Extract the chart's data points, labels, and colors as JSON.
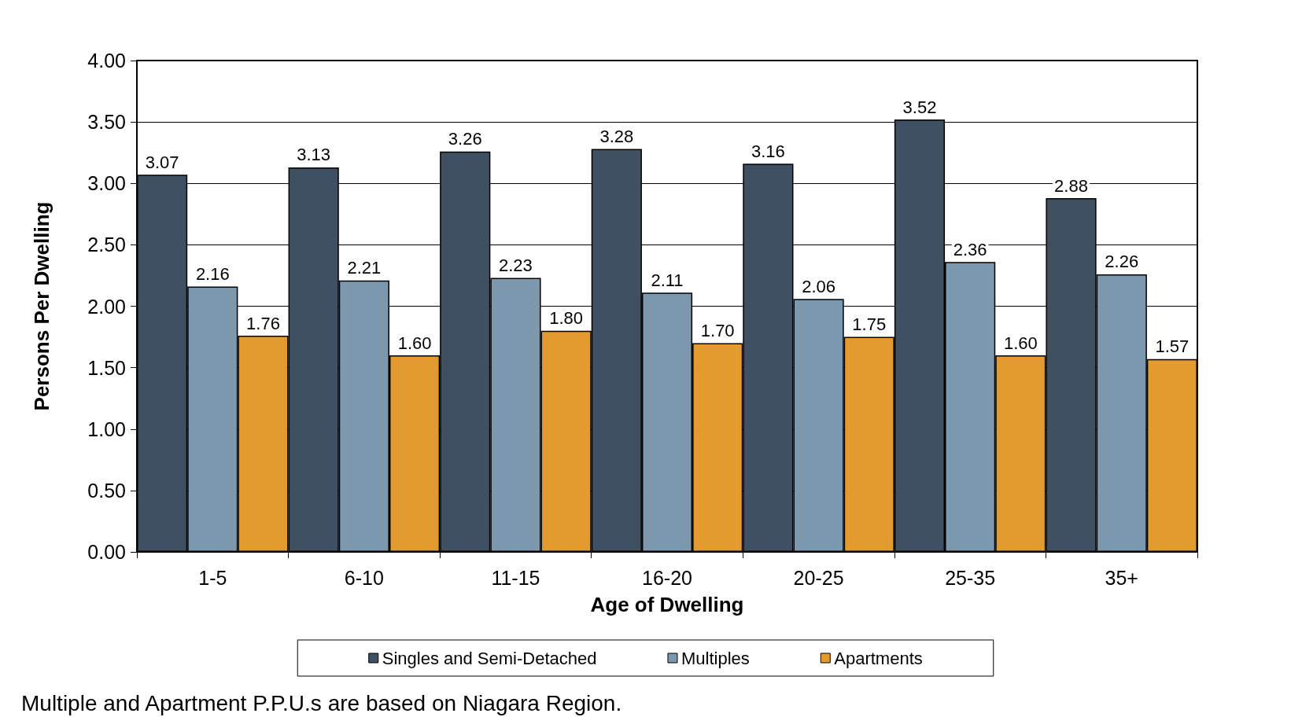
{
  "chart_data": {
    "type": "bar",
    "xlabel": "Age of Dwelling",
    "ylabel": "Persons Per Dwelling",
    "categories": [
      "1-5",
      "6-10",
      "11-15",
      "16-20",
      "20-25",
      "25-35",
      "35+"
    ],
    "series": [
      {
        "name": "Singles and Semi-Detached",
        "color": "#3f5062",
        "values": [
          3.07,
          3.13,
          3.26,
          3.28,
          3.16,
          3.52,
          2.88
        ],
        "value_labels": [
          "3.07",
          "3.13",
          "3.26",
          "3.28",
          "3.16",
          "3.52",
          "2.88"
        ]
      },
      {
        "name": "Multiples",
        "color": "#7b98ae",
        "values": [
          2.16,
          2.21,
          2.23,
          2.11,
          2.06,
          2.36,
          2.26
        ],
        "value_labels": [
          "2.16",
          "2.21",
          "2.23",
          "2.11",
          "2.06",
          "2.36",
          "2.26"
        ]
      },
      {
        "name": "Apartments",
        "color": "#e39a2e",
        "values": [
          1.76,
          1.6,
          1.8,
          1.7,
          1.75,
          1.6,
          1.57
        ],
        "value_labels": [
          "1.76",
          "1.60",
          "1.80",
          "1.70",
          "1.75",
          "1.60",
          "1.57"
        ]
      }
    ],
    "ylim": [
      0,
      4
    ],
    "yticks": [
      {
        "value": 0,
        "label": "0.00"
      },
      {
        "value": 0.5,
        "label": "0.50"
      },
      {
        "value": 1,
        "label": "1.00"
      },
      {
        "value": 1.5,
        "label": "1.50"
      },
      {
        "value": 2,
        "label": "2.00"
      },
      {
        "value": 2.5,
        "label": "2.50"
      },
      {
        "value": 3,
        "label": "3.00"
      },
      {
        "value": 3.5,
        "label": "3.50"
      },
      {
        "value": 4,
        "label": "4.00"
      }
    ],
    "grid": "y",
    "legend": "bottom",
    "annotations": [
      "Multiple and Apartment P.P.U.s are based on Niagara Region."
    ]
  }
}
